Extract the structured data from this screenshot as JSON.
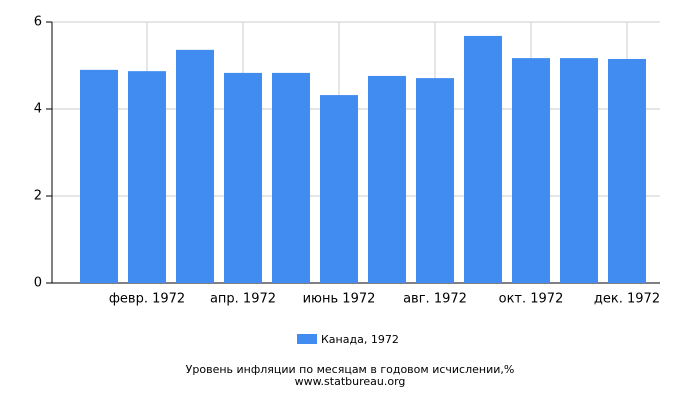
{
  "chart_data": {
    "type": "bar",
    "title": "Уровень инфляции по месяцам в годовом исчислении,%",
    "source": "www.statbureau.org",
    "categories": [
      null,
      "февр. 1972",
      null,
      "апр. 1972",
      null,
      "июнь 1972",
      null,
      "авг. 1972",
      null,
      "окт. 1972",
      null,
      "дек. 1972"
    ],
    "series": [
      {
        "name": "Канада, 1972",
        "color": "#418cf0",
        "values": [
          4.9,
          4.87,
          5.36,
          4.83,
          4.83,
          4.32,
          4.76,
          4.71,
          5.68,
          5.17,
          5.17,
          5.15
        ]
      }
    ],
    "ylim": [
      0,
      6
    ],
    "yticks": [
      0,
      2,
      4,
      6
    ],
    "grid": true
  }
}
